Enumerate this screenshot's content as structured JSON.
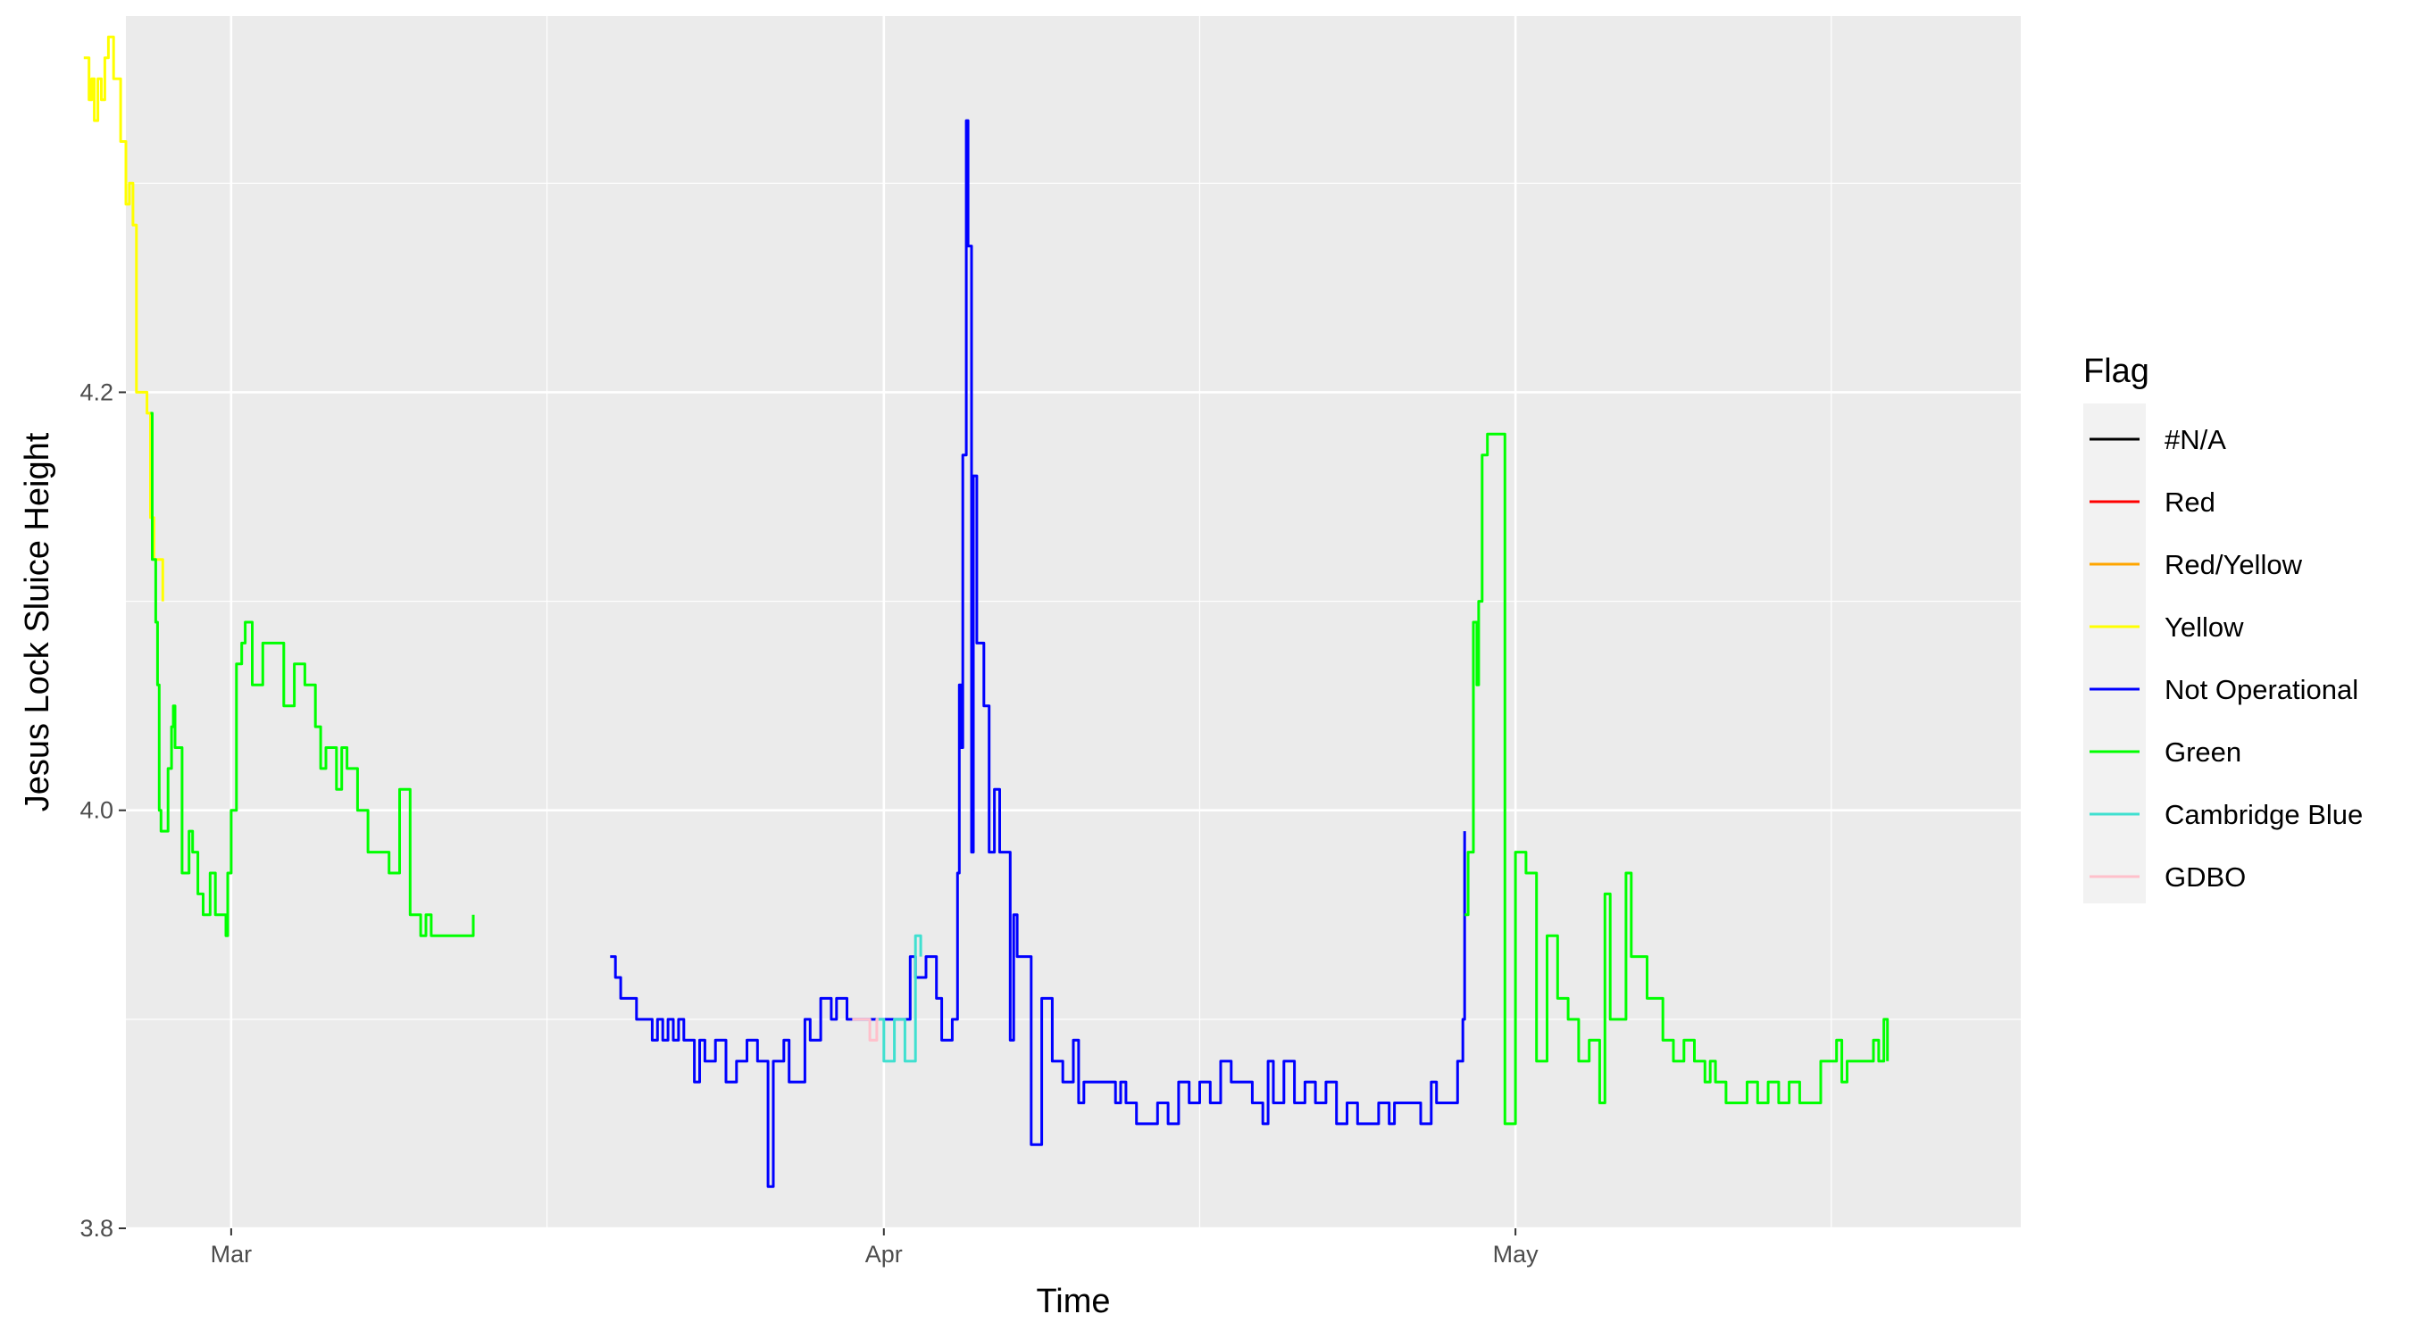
{
  "chart_data": {
    "type": "line",
    "title": "",
    "xlabel": "Time",
    "ylabel": "Jesus Lock Sluice Height",
    "x_axis": {
      "type": "date",
      "range": [
        "2021-02-24",
        "2021-05-25"
      ],
      "ticks": [
        {
          "date": "2021-03-01",
          "label": "Mar"
        },
        {
          "date": "2021-04-01",
          "label": "Apr"
        },
        {
          "date": "2021-05-01",
          "label": "May"
        }
      ],
      "minor_gridlines": [
        "2021-02-16",
        "2021-03-16",
        "2021-04-16",
        "2021-05-16"
      ]
    },
    "y_axis": {
      "range": [
        3.8,
        4.38
      ],
      "ticks": [
        3.8,
        4.0,
        4.2
      ],
      "tick_labels": [
        "3.8",
        "4.0",
        "4.2"
      ],
      "minor_gridlines": [
        3.9,
        4.1,
        4.3
      ]
    },
    "grid": true,
    "legend": {
      "title": "Flag",
      "position": "right",
      "entries": [
        {
          "label": "#N/A",
          "color": "#000000"
        },
        {
          "label": "Red",
          "color": "#ff0000"
        },
        {
          "label": "Red/Yellow",
          "color": "#ffa500"
        },
        {
          "label": "Yellow",
          "color": "#ffff00"
        },
        {
          "label": "Not Operational",
          "color": "#0000ff"
        },
        {
          "label": "Green",
          "color": "#00ff00"
        },
        {
          "label": "Cambridge Blue",
          "color": "#40e0d0"
        },
        {
          "label": "GDBO",
          "color": "#ffc0cb"
        }
      ]
    },
    "series": [
      {
        "name": "Yellow",
        "color": "#ffff00",
        "points": [
          [
            "2021-02-22 00:00",
            4.36
          ],
          [
            "2021-02-22 06:00",
            4.34
          ],
          [
            "2021-02-22 09:00",
            4.35
          ],
          [
            "2021-02-22 12:00",
            4.33
          ],
          [
            "2021-02-22 16:00",
            4.35
          ],
          [
            "2021-02-22 20:00",
            4.34
          ],
          [
            "2021-02-23 00:00",
            4.36
          ],
          [
            "2021-02-23 04:00",
            4.37
          ],
          [
            "2021-02-23 10:00",
            4.35
          ],
          [
            "2021-02-23 14:00",
            4.35
          ],
          [
            "2021-02-23 18:00",
            4.32
          ],
          [
            "2021-02-24 00:00",
            4.29
          ],
          [
            "2021-02-24 04:00",
            4.3
          ],
          [
            "2021-02-24 08:00",
            4.28
          ],
          [
            "2021-02-24 12:00",
            4.2
          ],
          [
            "2021-02-24 20:00",
            4.2
          ],
          [
            "2021-02-25 00:00",
            4.19
          ],
          [
            "2021-02-25 04:00",
            4.14
          ],
          [
            "2021-02-25 08:00",
            4.12
          ],
          [
            "2021-02-25 14:00",
            4.12
          ],
          [
            "2021-02-25 18:00",
            4.1
          ]
        ]
      },
      {
        "name": "Green",
        "color": "#00ff00",
        "points": [
          [
            "2021-02-25 04:00",
            4.19
          ],
          [
            "2021-02-25 06:00",
            4.12
          ],
          [
            "2021-02-25 10:00",
            4.09
          ],
          [
            "2021-02-25 12:00",
            4.06
          ],
          [
            "2021-02-25 14:00",
            4.0
          ],
          [
            "2021-02-25 16:00",
            3.99
          ],
          [
            "2021-02-26 00:00",
            4.02
          ],
          [
            "2021-02-26 04:00",
            4.04
          ],
          [
            "2021-02-26 06:00",
            4.05
          ],
          [
            "2021-02-26 08:00",
            4.03
          ],
          [
            "2021-02-26 16:00",
            3.97
          ],
          [
            "2021-02-27 00:00",
            3.99
          ],
          [
            "2021-02-27 04:00",
            3.98
          ],
          [
            "2021-02-27 10:00",
            3.96
          ],
          [
            "2021-02-27 16:00",
            3.95
          ],
          [
            "2021-02-28 00:00",
            3.97
          ],
          [
            "2021-02-28 06:00",
            3.95
          ],
          [
            "2021-02-28 12:00",
            3.95
          ],
          [
            "2021-02-28 18:00",
            3.94
          ],
          [
            "2021-02-28 20:00",
            3.97
          ],
          [
            "2021-03-01 00:00",
            4.0
          ],
          [
            "2021-03-01 06:00",
            4.07
          ],
          [
            "2021-03-01 12:00",
            4.08
          ],
          [
            "2021-03-01 16:00",
            4.09
          ],
          [
            "2021-03-02 00:00",
            4.06
          ],
          [
            "2021-03-02 12:00",
            4.08
          ],
          [
            "2021-03-03 12:00",
            4.05
          ],
          [
            "2021-03-04 00:00",
            4.07
          ],
          [
            "2021-03-04 12:00",
            4.06
          ],
          [
            "2021-03-05 00:00",
            4.04
          ],
          [
            "2021-03-05 06:00",
            4.02
          ],
          [
            "2021-03-05 12:00",
            4.03
          ],
          [
            "2021-03-06 00:00",
            4.01
          ],
          [
            "2021-03-06 06:00",
            4.03
          ],
          [
            "2021-03-06 12:00",
            4.02
          ],
          [
            "2021-03-07 00:00",
            4.0
          ],
          [
            "2021-03-07 12:00",
            3.98
          ],
          [
            "2021-03-08 12:00",
            3.97
          ],
          [
            "2021-03-09 00:00",
            4.01
          ],
          [
            "2021-03-09 12:00",
            3.95
          ],
          [
            "2021-03-10 00:00",
            3.94
          ],
          [
            "2021-03-10 06:00",
            3.95
          ],
          [
            "2021-03-10 12:00",
            3.94
          ],
          [
            "2021-03-12 12:00",
            3.95
          ]
        ]
      },
      {
        "name": "Not Operational",
        "color": "#0000ff",
        "points": [
          [
            "2021-03-19 00:00",
            3.93
          ],
          [
            "2021-03-19 06:00",
            3.92
          ],
          [
            "2021-03-19 12:00",
            3.91
          ],
          [
            "2021-03-20 06:00",
            3.9
          ],
          [
            "2021-03-21 00:00",
            3.89
          ],
          [
            "2021-03-21 06:00",
            3.9
          ],
          [
            "2021-03-21 12:00",
            3.89
          ],
          [
            "2021-03-21 18:00",
            3.9
          ],
          [
            "2021-03-22 00:00",
            3.89
          ],
          [
            "2021-03-22 06:00",
            3.9
          ],
          [
            "2021-03-22 12:00",
            3.89
          ],
          [
            "2021-03-23 00:00",
            3.87
          ],
          [
            "2021-03-23 06:00",
            3.89
          ],
          [
            "2021-03-23 12:00",
            3.88
          ],
          [
            "2021-03-24 00:00",
            3.89
          ],
          [
            "2021-03-24 12:00",
            3.87
          ],
          [
            "2021-03-25 00:00",
            3.88
          ],
          [
            "2021-03-25 12:00",
            3.89
          ],
          [
            "2021-03-26 00:00",
            3.88
          ],
          [
            "2021-03-26 12:00",
            3.82
          ],
          [
            "2021-03-26 18:00",
            3.88
          ],
          [
            "2021-03-27 06:00",
            3.89
          ],
          [
            "2021-03-27 12:00",
            3.87
          ],
          [
            "2021-03-28 06:00",
            3.9
          ],
          [
            "2021-03-28 12:00",
            3.89
          ],
          [
            "2021-03-29 00:00",
            3.91
          ],
          [
            "2021-03-29 12:00",
            3.9
          ],
          [
            "2021-03-29 18:00",
            3.91
          ],
          [
            "2021-03-30 06:00",
            3.9
          ],
          [
            "2021-04-02 06:00",
            3.93
          ],
          [
            "2021-04-02 12:00",
            3.92
          ],
          [
            "2021-04-03 00:00",
            3.93
          ],
          [
            "2021-04-03 12:00",
            3.91
          ],
          [
            "2021-04-03 18:00",
            3.89
          ],
          [
            "2021-04-04 06:00",
            3.9
          ],
          [
            "2021-04-04 12:00",
            3.97
          ],
          [
            "2021-04-04 14:00",
            4.06
          ],
          [
            "2021-04-04 16:00",
            4.03
          ],
          [
            "2021-04-04 18:00",
            4.17
          ],
          [
            "2021-04-04 22:00",
            4.33
          ],
          [
            "2021-04-05 00:00",
            4.27
          ],
          [
            "2021-04-05 04:00",
            3.98
          ],
          [
            "2021-04-05 06:00",
            4.16
          ],
          [
            "2021-04-05 10:00",
            4.08
          ],
          [
            "2021-04-05 18:00",
            4.05
          ],
          [
            "2021-04-06 00:00",
            3.98
          ],
          [
            "2021-04-06 06:00",
            4.01
          ],
          [
            "2021-04-06 12:00",
            3.98
          ],
          [
            "2021-04-07 00:00",
            3.89
          ],
          [
            "2021-04-07 04:00",
            3.95
          ],
          [
            "2021-04-07 08:00",
            3.93
          ],
          [
            "2021-04-08 00:00",
            3.84
          ],
          [
            "2021-04-08 12:00",
            3.91
          ],
          [
            "2021-04-09 00:00",
            3.88
          ],
          [
            "2021-04-09 12:00",
            3.87
          ],
          [
            "2021-04-10 00:00",
            3.89
          ],
          [
            "2021-04-10 06:00",
            3.86
          ],
          [
            "2021-04-10 12:00",
            3.87
          ],
          [
            "2021-04-12 00:00",
            3.86
          ],
          [
            "2021-04-12 06:00",
            3.87
          ],
          [
            "2021-04-12 12:00",
            3.86
          ],
          [
            "2021-04-13 00:00",
            3.85
          ],
          [
            "2021-04-14 00:00",
            3.86
          ],
          [
            "2021-04-14 12:00",
            3.85
          ],
          [
            "2021-04-15 00:00",
            3.87
          ],
          [
            "2021-04-15 12:00",
            3.86
          ],
          [
            "2021-04-16 00:00",
            3.87
          ],
          [
            "2021-04-16 12:00",
            3.86
          ],
          [
            "2021-04-17 00:00",
            3.88
          ],
          [
            "2021-04-17 12:00",
            3.87
          ],
          [
            "2021-04-18 12:00",
            3.86
          ],
          [
            "2021-04-19 00:00",
            3.85
          ],
          [
            "2021-04-19 06:00",
            3.88
          ],
          [
            "2021-04-19 12:00",
            3.86
          ],
          [
            "2021-04-20 00:00",
            3.88
          ],
          [
            "2021-04-20 12:00",
            3.86
          ],
          [
            "2021-04-21 00:00",
            3.87
          ],
          [
            "2021-04-21 12:00",
            3.86
          ],
          [
            "2021-04-22 00:00",
            3.87
          ],
          [
            "2021-04-22 12:00",
            3.85
          ],
          [
            "2021-04-23 00:00",
            3.86
          ],
          [
            "2021-04-23 12:00",
            3.85
          ],
          [
            "2021-04-24 12:00",
            3.86
          ],
          [
            "2021-04-25 00:00",
            3.85
          ],
          [
            "2021-04-25 06:00",
            3.86
          ],
          [
            "2021-04-26 12:00",
            3.85
          ],
          [
            "2021-04-27 00:00",
            3.87
          ],
          [
            "2021-04-27 06:00",
            3.86
          ],
          [
            "2021-04-28 06:00",
            3.88
          ],
          [
            "2021-04-28 12:00",
            3.9
          ],
          [
            "2021-04-28 14:00",
            3.99
          ]
        ]
      },
      {
        "name": "GDBO",
        "color": "#ffc0cb",
        "points": [
          [
            "2021-03-30 12:00",
            3.9
          ],
          [
            "2021-03-31 06:00",
            3.9
          ],
          [
            "2021-03-31 08:00",
            3.89
          ],
          [
            "2021-03-31 14:00",
            3.89
          ],
          [
            "2021-03-31 16:00",
            3.9
          ],
          [
            "2021-04-01 00:00",
            3.9
          ]
        ]
      },
      {
        "name": "Cambridge Blue",
        "color": "#40e0d0",
        "points": [
          [
            "2021-03-31 18:00",
            3.9
          ],
          [
            "2021-04-01 00:00",
            3.88
          ],
          [
            "2021-04-01 12:00",
            3.9
          ],
          [
            "2021-04-02 00:00",
            3.88
          ],
          [
            "2021-04-02 12:00",
            3.94
          ],
          [
            "2021-04-02 18:00",
            3.93
          ]
        ]
      },
      {
        "name": "Green",
        "color": "#00ff00",
        "points": [
          [
            "2021-04-28 14:00",
            3.95
          ],
          [
            "2021-04-28 18:00",
            3.98
          ],
          [
            "2021-04-29 00:00",
            4.09
          ],
          [
            "2021-04-29 04:00",
            4.06
          ],
          [
            "2021-04-29 06:00",
            4.1
          ],
          [
            "2021-04-29 10:00",
            4.17
          ],
          [
            "2021-04-29 16:00",
            4.18
          ],
          [
            "2021-04-30 12:00",
            3.85
          ],
          [
            "2021-05-01 00:00",
            3.98
          ],
          [
            "2021-05-01 12:00",
            3.97
          ],
          [
            "2021-05-02 00:00",
            3.88
          ],
          [
            "2021-05-02 12:00",
            3.94
          ],
          [
            "2021-05-03 00:00",
            3.91
          ],
          [
            "2021-05-03 12:00",
            3.9
          ],
          [
            "2021-05-04 00:00",
            3.88
          ],
          [
            "2021-05-04 12:00",
            3.89
          ],
          [
            "2021-05-05 00:00",
            3.86
          ],
          [
            "2021-05-05 06:00",
            3.96
          ],
          [
            "2021-05-05 12:00",
            3.9
          ],
          [
            "2021-05-06 06:00",
            3.97
          ],
          [
            "2021-05-06 12:00",
            3.93
          ],
          [
            "2021-05-07 06:00",
            3.91
          ],
          [
            "2021-05-08 00:00",
            3.89
          ],
          [
            "2021-05-08 12:00",
            3.88
          ],
          [
            "2021-05-09 00:00",
            3.89
          ],
          [
            "2021-05-09 12:00",
            3.88
          ],
          [
            "2021-05-10 00:00",
            3.87
          ],
          [
            "2021-05-10 06:00",
            3.88
          ],
          [
            "2021-05-10 12:00",
            3.87
          ],
          [
            "2021-05-11 00:00",
            3.86
          ],
          [
            "2021-05-12 00:00",
            3.87
          ],
          [
            "2021-05-12 12:00",
            3.86
          ],
          [
            "2021-05-13 00:00",
            3.87
          ],
          [
            "2021-05-13 12:00",
            3.86
          ],
          [
            "2021-05-14 00:00",
            3.87
          ],
          [
            "2021-05-14 12:00",
            3.86
          ],
          [
            "2021-05-15 12:00",
            3.88
          ],
          [
            "2021-05-16 06:00",
            3.89
          ],
          [
            "2021-05-16 12:00",
            3.87
          ],
          [
            "2021-05-16 18:00",
            3.88
          ],
          [
            "2021-05-17 12:00",
            3.88
          ],
          [
            "2021-05-18 00:00",
            3.89
          ],
          [
            "2021-05-18 06:00",
            3.88
          ],
          [
            "2021-05-18 12:00",
            3.9
          ],
          [
            "2021-05-18 16:00",
            3.88
          ]
        ]
      }
    ]
  }
}
